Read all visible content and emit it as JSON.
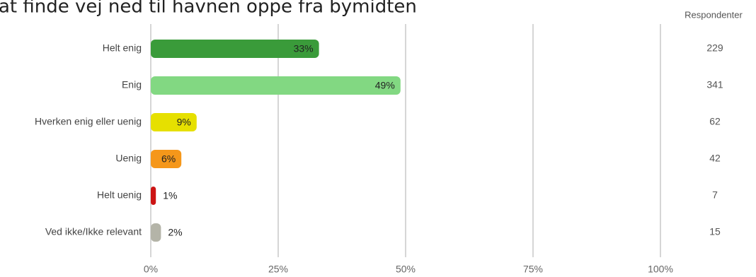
{
  "chart_data": {
    "type": "bar",
    "orientation": "horizontal",
    "title": "at finde vej ned til havnen oppe fra bymidten",
    "categories": [
      "Helt enig",
      "Enig",
      "Hverken enig eller uenig",
      "Uenig",
      "Helt uenig",
      "Ved ikke/Ikke relevant"
    ],
    "values": [
      33,
      49,
      9,
      6,
      1,
      2
    ],
    "value_labels": [
      "33%",
      "49%",
      "9%",
      "6%",
      "1%",
      "2%"
    ],
    "colors": [
      "#3a9b3a",
      "#82d882",
      "#e6e000",
      "#f5971a",
      "#cc1414",
      "#b4b4a8"
    ],
    "xlim": [
      0,
      100
    ],
    "xticks": [
      {
        "value": 0,
        "label": "0%"
      },
      {
        "value": 25,
        "label": "25%"
      },
      {
        "value": 50,
        "label": "50%"
      },
      {
        "value": 75,
        "label": "75%"
      },
      {
        "value": 100,
        "label": "100%"
      }
    ],
    "grid": true,
    "respondents": {
      "name": "Respondenter",
      "values": [
        229,
        341,
        62,
        42,
        7,
        15
      ]
    }
  }
}
